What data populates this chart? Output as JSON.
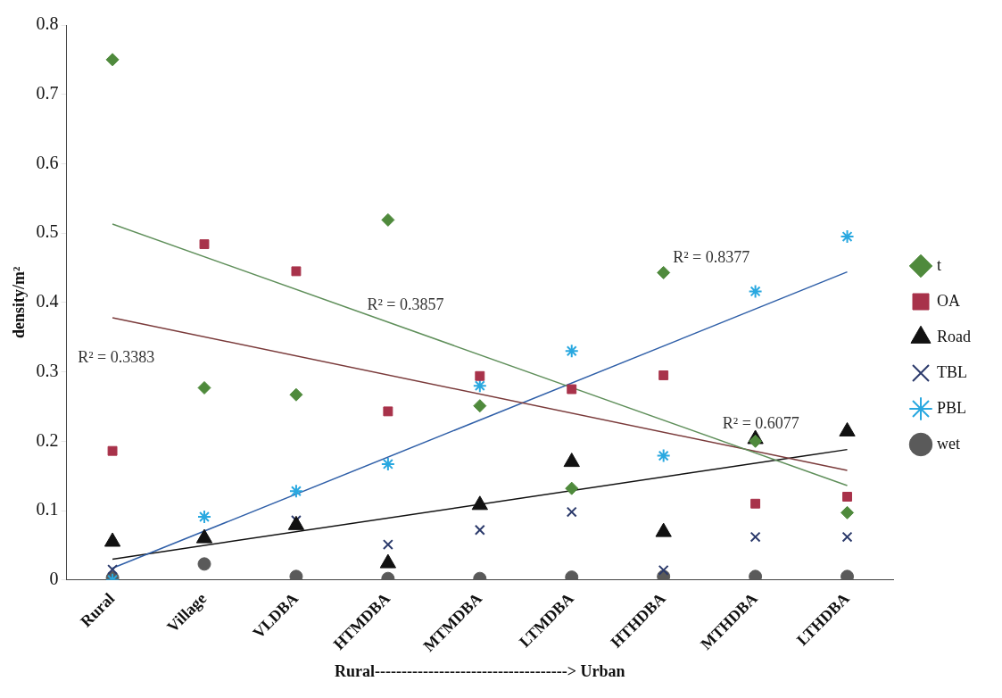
{
  "chart_data": {
    "type": "scatter",
    "xlabel": "Rural------------------------------------> Urban",
    "ylabel": "density/m²",
    "categories": [
      "Rural",
      "Village",
      "VLDBA",
      "HTMDBA",
      "MTMDBA",
      "LTMDBA",
      "HTHDBA",
      "MTHDBA",
      "LTHDBA"
    ],
    "ylim": [
      0,
      0.8
    ],
    "yticks": [
      0,
      0.1,
      0.2,
      0.3,
      0.4,
      0.5,
      0.6,
      0.7,
      0.8
    ],
    "grid": false,
    "legend": "right",
    "series": [
      {
        "name": "t",
        "marker": "diamond",
        "color": "#4f8a3c",
        "values": [
          0.75,
          0.277,
          0.267,
          0.519,
          0.251,
          0.132,
          0.443,
          0.2,
          0.097
        ]
      },
      {
        "name": "OA",
        "marker": "square",
        "color": "#a8324a",
        "values": [
          0.186,
          0.484,
          0.445,
          0.243,
          0.294,
          0.275,
          0.295,
          0.11,
          0.12
        ]
      },
      {
        "name": "Road",
        "marker": "triangle",
        "color": "#111111",
        "values": [
          0.055,
          0.06,
          0.079,
          0.024,
          0.108,
          0.17,
          0.069,
          0.203,
          0.214
        ]
      },
      {
        "name": "TBL",
        "marker": "cross",
        "color": "#2b3a6b",
        "values": [
          0.015,
          null,
          0.086,
          0.051,
          0.072,
          0.098,
          0.014,
          0.062,
          0.062
        ]
      },
      {
        "name": "PBL",
        "color": "#29a8e0",
        "values": [
          0,
          0.091,
          0.128,
          0.167,
          0.28,
          0.33,
          0.179,
          0.416,
          0.495
        ]
      },
      {
        "name": "wet",
        "marker": "circle",
        "color": "#5a5a5a",
        "values": [
          0.003,
          0.023,
          0.005,
          0.002,
          0.002,
          0.004,
          0.005,
          0.005,
          0.005
        ]
      },
      {
        "type": "line",
        "color": "#5f8f5a",
        "x": [
          "Rural",
          "LTHDBA"
        ],
        "values": [
          0.513,
          0.136
        ]
      },
      {
        "type": "line",
        "color": "#7a3a3a",
        "x": [
          "Rural",
          "LTHDBA"
        ],
        "values": [
          0.378,
          0.158
        ]
      },
      {
        "type": "line",
        "color": "#2f5fa8",
        "x": [
          "Rural",
          "LTHDBA"
        ],
        "values": [
          0.017,
          0.444
        ]
      },
      {
        "type": "line",
        "color": "#111111",
        "x": [
          "Rural",
          "LTHDBA"
        ],
        "values": [
          0.03,
          0.188
        ]
      }
    ],
    "annotations": [
      "R² = 0.3383",
      "R² = 0.3857",
      "R² = 0.8377",
      "R² = 0.6077"
    ]
  }
}
